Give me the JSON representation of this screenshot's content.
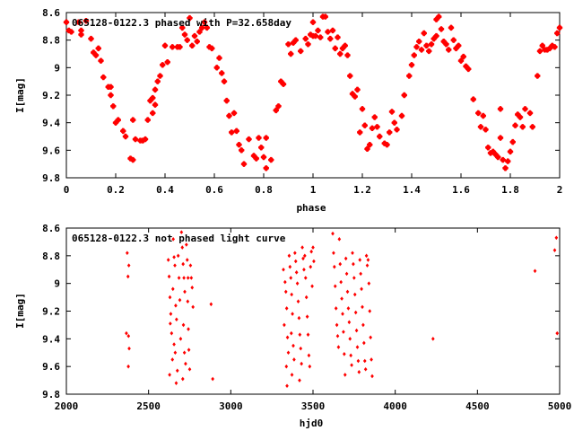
{
  "chart_data": [
    {
      "type": "scatter",
      "title": "065128-0122.3 phased with P=32.658day",
      "xlabel": "phase",
      "ylabel": "I[mag]",
      "xlim": [
        0,
        2
      ],
      "ylim": [
        9.8,
        8.6
      ],
      "y_inverted": true,
      "grid": false,
      "legend": "none",
      "marker_color": "#ff0000",
      "x_ticks": [
        "0",
        "0.2",
        "0.4",
        "0.6",
        "0.8",
        "1",
        "1.2",
        "1.4",
        "1.6",
        "1.8",
        "2"
      ],
      "y_ticks": [
        "8.6",
        "8.8",
        "9",
        "9.2",
        "9.4",
        "9.6",
        "9.8"
      ],
      "points": [
        [
          0.0,
          8.67
        ],
        [
          0.01,
          8.73
        ],
        [
          0.02,
          8.74
        ],
        [
          0.05,
          8.67
        ],
        [
          0.06,
          8.73
        ],
        [
          0.06,
          8.76
        ],
        [
          0.08,
          8.66
        ],
        [
          0.1,
          8.79
        ],
        [
          0.11,
          8.89
        ],
        [
          0.12,
          8.91
        ],
        [
          0.13,
          8.86
        ],
        [
          0.14,
          8.95
        ],
        [
          0.15,
          9.07
        ],
        [
          0.17,
          9.14
        ],
        [
          0.18,
          9.14
        ],
        [
          0.18,
          9.2
        ],
        [
          0.19,
          9.28
        ],
        [
          0.2,
          9.4
        ],
        [
          0.21,
          9.38
        ],
        [
          0.23,
          9.46
        ],
        [
          0.24,
          9.5
        ],
        [
          0.26,
          9.66
        ],
        [
          0.27,
          9.67
        ],
        [
          0.27,
          9.38
        ],
        [
          0.28,
          9.52
        ],
        [
          0.3,
          9.53
        ],
        [
          0.31,
          9.53
        ],
        [
          0.32,
          9.52
        ],
        [
          0.33,
          9.38
        ],
        [
          0.34,
          9.24
        ],
        [
          0.35,
          9.22
        ],
        [
          0.35,
          9.33
        ],
        [
          0.36,
          9.27
        ],
        [
          0.36,
          9.16
        ],
        [
          0.37,
          9.1
        ],
        [
          0.38,
          9.06
        ],
        [
          0.39,
          8.98
        ],
        [
          0.4,
          8.84
        ],
        [
          0.41,
          8.96
        ],
        [
          0.43,
          8.85
        ],
        [
          0.45,
          8.85
        ],
        [
          0.46,
          8.85
        ],
        [
          0.47,
          8.71
        ],
        [
          0.48,
          8.76
        ],
        [
          0.49,
          8.8
        ],
        [
          0.5,
          8.64
        ],
        [
          0.51,
          8.84
        ],
        [
          0.52,
          8.77
        ],
        [
          0.53,
          8.81
        ],
        [
          0.54,
          8.74
        ],
        [
          0.55,
          8.71
        ],
        [
          0.56,
          8.67
        ],
        [
          0.57,
          8.71
        ],
        [
          0.58,
          8.85
        ],
        [
          0.59,
          8.86
        ],
        [
          0.61,
          9.0
        ],
        [
          0.62,
          8.93
        ],
        [
          0.63,
          9.04
        ],
        [
          0.64,
          9.1
        ],
        [
          0.65,
          9.24
        ],
        [
          0.66,
          9.35
        ],
        [
          0.67,
          9.47
        ],
        [
          0.68,
          9.33
        ],
        [
          0.69,
          9.46
        ],
        [
          0.7,
          9.56
        ],
        [
          0.71,
          9.6
        ],
        [
          0.72,
          9.7
        ],
        [
          0.74,
          9.52
        ],
        [
          0.76,
          9.64
        ],
        [
          0.77,
          9.66
        ],
        [
          0.78,
          9.51
        ],
        [
          0.79,
          9.58
        ],
        [
          0.8,
          9.65
        ],
        [
          0.81,
          9.73
        ],
        [
          0.81,
          9.51
        ],
        [
          0.83,
          9.67
        ],
        [
          0.85,
          9.31
        ],
        [
          0.86,
          9.28
        ],
        [
          0.87,
          9.1
        ],
        [
          0.88,
          9.12
        ],
        [
          0.9,
          8.83
        ],
        [
          0.91,
          8.9
        ],
        [
          0.92,
          8.82
        ],
        [
          0.93,
          8.8
        ],
        [
          0.95,
          8.88
        ],
        [
          0.97,
          8.79
        ],
        [
          0.98,
          8.83
        ],
        [
          0.99,
          8.76
        ],
        [
          1.0,
          8.67
        ],
        [
          1.0,
          8.77
        ],
        [
          1.01,
          8.77
        ],
        [
          1.02,
          8.73
        ],
        [
          1.03,
          8.78
        ],
        [
          1.04,
          8.63
        ],
        [
          1.05,
          8.63
        ],
        [
          1.06,
          8.74
        ],
        [
          1.07,
          8.79
        ],
        [
          1.08,
          8.73
        ],
        [
          1.09,
          8.86
        ],
        [
          1.1,
          8.78
        ],
        [
          1.11,
          8.9
        ],
        [
          1.12,
          8.86
        ],
        [
          1.13,
          8.84
        ],
        [
          1.14,
          8.91
        ],
        [
          1.15,
          9.06
        ],
        [
          1.16,
          9.19
        ],
        [
          1.17,
          9.21
        ],
        [
          1.18,
          9.16
        ],
        [
          1.19,
          9.47
        ],
        [
          1.2,
          9.3
        ],
        [
          1.21,
          9.42
        ],
        [
          1.22,
          9.59
        ],
        [
          1.23,
          9.56
        ],
        [
          1.24,
          9.44
        ],
        [
          1.25,
          9.36
        ],
        [
          1.26,
          9.43
        ],
        [
          1.27,
          9.5
        ],
        [
          1.29,
          9.55
        ],
        [
          1.3,
          9.56
        ],
        [
          1.31,
          9.47
        ],
        [
          1.32,
          9.32
        ],
        [
          1.33,
          9.4
        ],
        [
          1.34,
          9.45
        ],
        [
          1.36,
          9.35
        ],
        [
          1.37,
          9.2
        ],
        [
          1.39,
          9.06
        ],
        [
          1.4,
          8.98
        ],
        [
          1.41,
          8.91
        ],
        [
          1.42,
          8.85
        ],
        [
          1.43,
          8.81
        ],
        [
          1.44,
          8.87
        ],
        [
          1.45,
          8.75
        ],
        [
          1.46,
          8.84
        ],
        [
          1.47,
          8.88
        ],
        [
          1.48,
          8.83
        ],
        [
          1.49,
          8.79
        ],
        [
          1.5,
          8.65
        ],
        [
          1.5,
          8.77
        ],
        [
          1.51,
          8.63
        ],
        [
          1.52,
          8.72
        ],
        [
          1.53,
          8.81
        ],
        [
          1.54,
          8.83
        ],
        [
          1.55,
          8.87
        ],
        [
          1.56,
          8.71
        ],
        [
          1.57,
          8.8
        ],
        [
          1.58,
          8.86
        ],
        [
          1.59,
          8.84
        ],
        [
          1.6,
          8.95
        ],
        [
          1.61,
          8.92
        ],
        [
          1.62,
          8.99
        ],
        [
          1.63,
          9.01
        ],
        [
          1.65,
          9.23
        ],
        [
          1.67,
          9.33
        ],
        [
          1.68,
          9.43
        ],
        [
          1.69,
          9.35
        ],
        [
          1.7,
          9.45
        ],
        [
          1.71,
          9.58
        ],
        [
          1.72,
          9.62
        ],
        [
          1.73,
          9.61
        ],
        [
          1.74,
          9.63
        ],
        [
          1.75,
          9.65
        ],
        [
          1.76,
          9.51
        ],
        [
          1.76,
          9.3
        ],
        [
          1.77,
          9.67
        ],
        [
          1.78,
          9.73
        ],
        [
          1.79,
          9.68
        ],
        [
          1.8,
          9.61
        ],
        [
          1.81,
          9.54
        ],
        [
          1.82,
          9.42
        ],
        [
          1.83,
          9.34
        ],
        [
          1.84,
          9.36
        ],
        [
          1.85,
          9.43
        ],
        [
          1.86,
          9.3
        ],
        [
          1.88,
          9.33
        ],
        [
          1.89,
          9.43
        ],
        [
          1.91,
          9.06
        ],
        [
          1.92,
          8.88
        ],
        [
          1.93,
          8.84
        ],
        [
          1.94,
          8.87
        ],
        [
          1.95,
          8.87
        ],
        [
          1.96,
          8.86
        ],
        [
          1.97,
          8.84
        ],
        [
          1.98,
          8.85
        ],
        [
          1.99,
          8.75
        ],
        [
          2.0,
          8.71
        ]
      ]
    },
    {
      "type": "scatter",
      "title": "065128-0122.3 not phased light curve",
      "xlabel": "hjd0",
      "ylabel": "I[mag]",
      "xlim": [
        2000,
        5000
      ],
      "ylim": [
        9.8,
        8.6
      ],
      "y_inverted": true,
      "grid": false,
      "legend": "none",
      "marker_color": "#ff0000",
      "x_ticks": [
        "2000",
        "2500",
        "3000",
        "3500",
        "4000",
        "4500",
        "5000"
      ],
      "y_ticks": [
        "8.6",
        "8.8",
        "9",
        "9.2",
        "9.4",
        "9.6",
        "9.8"
      ],
      "points": [
        [
          2370,
          8.78
        ],
        [
          2375,
          8.95
        ],
        [
          2380,
          8.87
        ],
        [
          2365,
          9.36
        ],
        [
          2378,
          9.38
        ],
        [
          2382,
          9.47
        ],
        [
          2377,
          9.6
        ],
        [
          2620,
          8.83
        ],
        [
          2625,
          8.95
        ],
        [
          2630,
          9.1
        ],
        [
          2635,
          9.22
        ],
        [
          2632,
          9.29
        ],
        [
          2640,
          9.36
        ],
        [
          2645,
          9.55
        ],
        [
          2628,
          9.66
        ],
        [
          2650,
          8.68
        ],
        [
          2655,
          8.81
        ],
        [
          2660,
          8.87
        ],
        [
          2648,
          9.04
        ],
        [
          2665,
          9.16
        ],
        [
          2670,
          9.26
        ],
        [
          2655,
          9.44
        ],
        [
          2662,
          9.5
        ],
        [
          2675,
          9.63
        ],
        [
          2668,
          9.72
        ],
        [
          2680,
          8.8
        ],
        [
          2685,
          8.96
        ],
        [
          2690,
          9.12
        ],
        [
          2695,
          9.4
        ],
        [
          2700,
          8.63
        ],
        [
          2705,
          8.74
        ],
        [
          2710,
          8.86
        ],
        [
          2715,
          8.96
        ],
        [
          2720,
          9.06
        ],
        [
          2712,
          9.3
        ],
        [
          2718,
          9.5
        ],
        [
          2725,
          9.58
        ],
        [
          2708,
          9.69
        ],
        [
          2730,
          8.72
        ],
        [
          2735,
          8.83
        ],
        [
          2740,
          8.96
        ],
        [
          2738,
          9.13
        ],
        [
          2742,
          9.33
        ],
        [
          2745,
          9.48
        ],
        [
          2750,
          9.62
        ],
        [
          2755,
          8.87
        ],
        [
          2760,
          8.96
        ],
        [
          2765,
          9.03
        ],
        [
          2770,
          9.17
        ],
        [
          2880,
          9.15
        ],
        [
          2890,
          9.69
        ],
        [
          3320,
          8.9
        ],
        [
          3330,
          8.99
        ],
        [
          3335,
          9.06
        ],
        [
          3340,
          9.18
        ],
        [
          3325,
          9.3
        ],
        [
          3345,
          9.39
        ],
        [
          3350,
          9.5
        ],
        [
          3338,
          9.6
        ],
        [
          3342,
          9.74
        ],
        [
          3355,
          8.8
        ],
        [
          3360,
          8.88
        ],
        [
          3365,
          8.96
        ],
        [
          3370,
          9.08
        ],
        [
          3375,
          9.22
        ],
        [
          3368,
          9.36
        ],
        [
          3380,
          9.45
        ],
        [
          3385,
          9.55
        ],
        [
          3372,
          9.66
        ],
        [
          3390,
          8.78
        ],
        [
          3395,
          8.84
        ],
        [
          3400,
          8.92
        ],
        [
          3405,
          9.0
        ],
        [
          3410,
          9.13
        ],
        [
          3415,
          9.25
        ],
        [
          3420,
          9.37
        ],
        [
          3425,
          9.47
        ],
        [
          3430,
          9.58
        ],
        [
          3418,
          9.7
        ],
        [
          3435,
          8.74
        ],
        [
          3440,
          8.82
        ],
        [
          3445,
          8.9
        ],
        [
          3450,
          8.8
        ],
        [
          3455,
          8.96
        ],
        [
          3460,
          9.1
        ],
        [
          3465,
          9.24
        ],
        [
          3470,
          9.37
        ],
        [
          3475,
          9.52
        ],
        [
          3480,
          9.6
        ],
        [
          3485,
          8.88
        ],
        [
          3490,
          8.77
        ],
        [
          3495,
          9.02
        ],
        [
          3500,
          8.74
        ],
        [
          3505,
          8.84
        ],
        [
          3620,
          8.64
        ],
        [
          3625,
          8.78
        ],
        [
          3630,
          8.88
        ],
        [
          3635,
          9.02
        ],
        [
          3640,
          9.18
        ],
        [
          3645,
          9.3
        ],
        [
          3650,
          9.38
        ],
        [
          3655,
          9.46
        ],
        [
          3660,
          8.68
        ],
        [
          3665,
          8.86
        ],
        [
          3670,
          8.99
        ],
        [
          3675,
          9.11
        ],
        [
          3680,
          9.22
        ],
        [
          3685,
          9.35
        ],
        [
          3690,
          9.51
        ],
        [
          3695,
          9.66
        ],
        [
          3700,
          8.82
        ],
        [
          3705,
          8.93
        ],
        [
          3710,
          9.06
        ],
        [
          3715,
          9.18
        ],
        [
          3720,
          9.28
        ],
        [
          3725,
          9.4
        ],
        [
          3730,
          9.52
        ],
        [
          3735,
          9.59
        ],
        [
          3740,
          8.78
        ],
        [
          3745,
          8.86
        ],
        [
          3750,
          8.96
        ],
        [
          3755,
          9.08
        ],
        [
          3760,
          9.21
        ],
        [
          3765,
          9.34
        ],
        [
          3770,
          9.46
        ],
        [
          3775,
          9.56
        ],
        [
          3780,
          9.64
        ],
        [
          3785,
          8.83
        ],
        [
          3790,
          8.93
        ],
        [
          3795,
          9.04
        ],
        [
          3800,
          9.17
        ],
        [
          3805,
          9.3
        ],
        [
          3810,
          9.43
        ],
        [
          3815,
          9.56
        ],
        [
          3820,
          9.62
        ],
        [
          3825,
          8.8
        ],
        [
          3830,
          8.87
        ],
        [
          3835,
          8.83
        ],
        [
          3840,
          9.0
        ],
        [
          3845,
          9.2
        ],
        [
          3850,
          9.39
        ],
        [
          3855,
          9.55
        ],
        [
          3860,
          9.67
        ],
        [
          4230,
          9.4
        ],
        [
          4850,
          8.91
        ],
        [
          4970,
          8.76
        ],
        [
          4980,
          8.67
        ],
        [
          4985,
          9.36
        ]
      ]
    }
  ]
}
